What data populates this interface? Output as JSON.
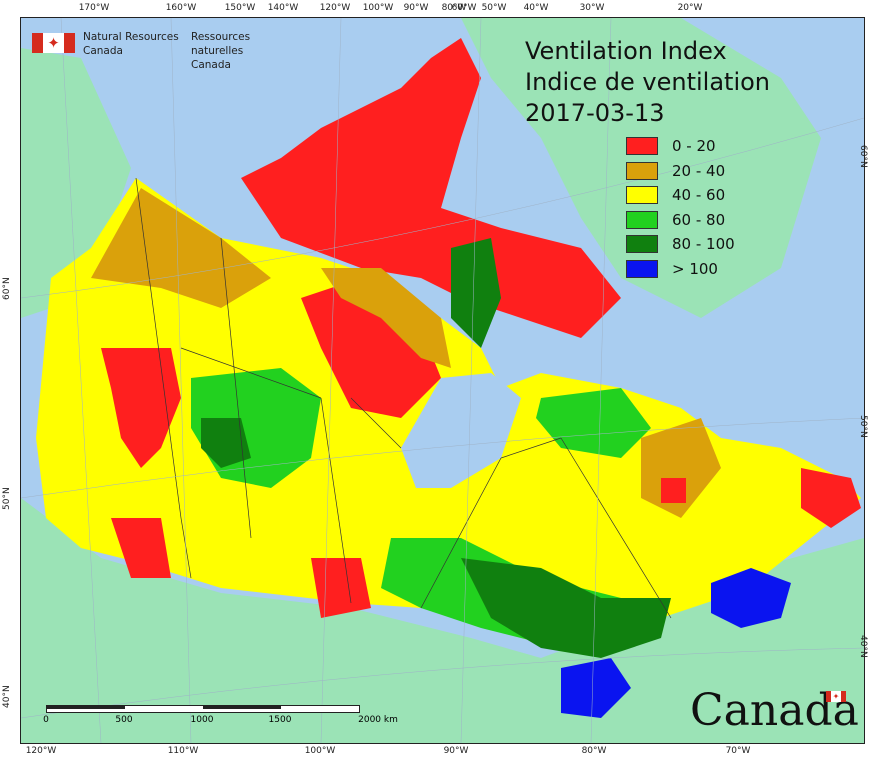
{
  "map": {
    "title_lines": [
      "Ventilation Index",
      "Indice de ventilation",
      "2017-03-13"
    ],
    "agency": {
      "english": [
        "Natural Resources",
        "Canada"
      ],
      "french": [
        "Ressources naturelles",
        "Canada"
      ]
    },
    "wordmark": "Canada",
    "legend": [
      {
        "label": "0 - 20",
        "color": "#ff1f1f"
      },
      {
        "label": "20 - 40",
        "color": "#daa10b"
      },
      {
        "label": "40 - 60",
        "color": "#ffff00"
      },
      {
        "label": "60 - 80",
        "color": "#22d11f"
      },
      {
        "label": "80 - 100",
        "color": "#10800f"
      },
      {
        "label": "> 100",
        "color": "#0a14f0"
      }
    ],
    "colors": {
      "ocean": "#a9cdf0",
      "land_outside": "#9be3b6",
      "grid": "#9fb3c8",
      "borders": "#333333"
    },
    "top_ticks": [
      "170°W",
      "160°W",
      "150°W",
      "140°W",
      "120°W",
      "100°W",
      "90°W",
      "80°W",
      "60°W",
      "50°W",
      "40°W",
      "30°W",
      "20°W"
    ],
    "bottom_ticks": [
      "120°W",
      "110°W",
      "100°W",
      "90°W",
      "80°W",
      "70°W"
    ],
    "left_ticks": [
      "60°N",
      "50°N",
      "40°N"
    ],
    "right_ticks": [
      "60°N",
      "50°N",
      "40°N"
    ],
    "scale": {
      "labels": [
        "0",
        "500",
        "1000",
        "1500",
        "2000 km"
      ]
    }
  }
}
